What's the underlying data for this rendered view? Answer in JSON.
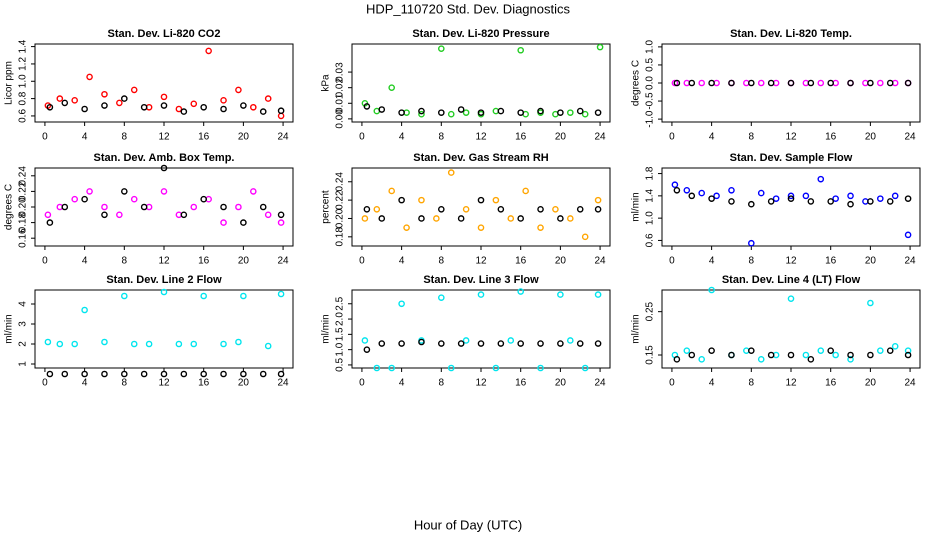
{
  "title": "HDP_110720  Std. Dev. Diagnostics",
  "xlabel": "Hour of Day (UTC)",
  "chart_data": [
    {
      "type": "scatter",
      "title": "Stan. Dev. Li-820 CO2",
      "ylabel": "Licor ppm",
      "xlim": [
        -1,
        25
      ],
      "xticks": [
        0,
        4,
        8,
        12,
        16,
        20,
        24
      ],
      "ylim": [
        0.53,
        1.43
      ],
      "yticks": [
        0.6,
        0.8,
        {
          "value": 1,
          "label": "1.0"
        },
        1.2,
        1.4
      ],
      "grid": false,
      "series": [
        {
          "color": "#ff0000",
          "x": [
            0.3,
            1.5,
            3,
            4.5,
            6,
            7.5,
            9,
            10.5,
            12,
            13.5,
            15,
            16.5,
            18,
            19.5,
            21,
            22.5,
            23.8
          ],
          "values": [
            0.72,
            0.8,
            0.78,
            1.05,
            0.85,
            0.75,
            0.9,
            0.7,
            0.82,
            0.68,
            0.74,
            1.35,
            0.78,
            0.9,
            0.7,
            0.8,
            0.6
          ]
        },
        {
          "color": "#000000",
          "x": [
            0.5,
            2,
            4,
            6,
            8,
            10,
            12,
            14,
            16,
            18,
            20,
            22,
            23.8
          ],
          "values": [
            0.7,
            0.75,
            0.68,
            0.72,
            0.8,
            0.7,
            0.72,
            0.65,
            0.7,
            0.68,
            0.72,
            0.65,
            0.66
          ]
        }
      ]
    },
    {
      "type": "scatter",
      "title": "Stan. Dev. Li-820 Pressure",
      "ylabel": "kPa",
      "xlim": [
        -1,
        25
      ],
      "xticks": [
        0,
        4,
        8,
        12,
        16,
        20,
        24
      ],
      "ylim": [
        -0.002,
        0.048
      ],
      "yticks": [
        {
          "value": 0,
          "label": "0.00"
        },
        0.01,
        0.02,
        0.03
      ],
      "grid": false,
      "series": [
        {
          "color": "#22cc22",
          "x": [
            0.3,
            1.5,
            3,
            4.5,
            6,
            8,
            9,
            10.5,
            12,
            13.5,
            16,
            16.5,
            18,
            19.5,
            21,
            22.5,
            24
          ],
          "values": [
            0.01,
            0.005,
            0.02,
            0.004,
            0.003,
            0.045,
            0.003,
            0.004,
            0.003,
            0.005,
            0.044,
            0.003,
            0.004,
            0.003,
            0.004,
            0.003,
            0.046
          ]
        },
        {
          "color": "#000000",
          "x": [
            0.5,
            2,
            4,
            6,
            8,
            10,
            12,
            14,
            16,
            18,
            20,
            22,
            23.8
          ],
          "values": [
            0.008,
            0.006,
            0.004,
            0.005,
            0.004,
            0.006,
            0.004,
            0.005,
            0.004,
            0.005,
            0.004,
            0.005,
            0.004
          ]
        }
      ]
    },
    {
      "type": "scatter",
      "title": "Stan. Dev. Li-820 Temp.",
      "ylabel": "degrees C",
      "xlim": [
        -1,
        25
      ],
      "xticks": [
        0,
        4,
        8,
        12,
        16,
        20,
        24
      ],
      "ylim": [
        -1.08,
        1.08
      ],
      "yticks": [
        {
          "value": -1,
          "label": "-1.0"
        },
        -0.5,
        {
          "value": 0,
          "label": "0.0"
        },
        0.5,
        {
          "value": 1,
          "label": "1.0"
        }
      ],
      "grid": false,
      "series": [
        {
          "color": "#ff00ff",
          "x": [
            0.3,
            1.5,
            3,
            4.5,
            6,
            7.5,
            9,
            10.5,
            12,
            13.5,
            15,
            16.5,
            18,
            19.5,
            21,
            22.5,
            23.8
          ],
          "values": [
            0,
            0,
            0,
            0,
            0,
            0,
            0,
            0,
            0,
            0,
            0,
            0,
            0,
            0,
            0,
            0,
            0
          ]
        },
        {
          "color": "#000000",
          "x": [
            0.5,
            2,
            4,
            6,
            8,
            10,
            12,
            14,
            16,
            18,
            20,
            22,
            23.8
          ],
          "values": [
            0,
            0,
            0,
            0,
            0,
            0,
            0,
            0,
            0,
            0,
            0,
            0,
            0
          ]
        }
      ]
    },
    {
      "type": "scatter",
      "title": "Stan. Dev. Amb. Box Temp.",
      "ylabel": "degrees C",
      "xlim": [
        -1,
        25
      ],
      "xticks": [
        0,
        4,
        8,
        12,
        16,
        20,
        24
      ],
      "ylim": [
        0.15,
        0.25
      ],
      "yticks": [
        0.16,
        0.18,
        {
          "value": 0.2,
          "label": "0.20"
        },
        0.22,
        0.24
      ],
      "grid": false,
      "series": [
        {
          "color": "#ff00ff",
          "x": [
            0.3,
            1.5,
            3,
            4.5,
            6,
            7.5,
            9,
            10.5,
            12,
            13.5,
            15,
            16.5,
            18,
            19.5,
            21,
            22.5,
            23.8
          ],
          "values": [
            0.19,
            0.2,
            0.21,
            0.22,
            0.2,
            0.19,
            0.21,
            0.2,
            0.22,
            0.19,
            0.2,
            0.21,
            0.18,
            0.2,
            0.22,
            0.19,
            0.18
          ]
        },
        {
          "color": "#000000",
          "x": [
            0.5,
            2,
            4,
            6,
            8,
            10,
            12,
            14,
            16,
            18,
            20,
            22,
            23.8
          ],
          "values": [
            0.18,
            0.2,
            0.21,
            0.19,
            0.22,
            0.2,
            0.25,
            0.19,
            0.21,
            0.2,
            0.18,
            0.2,
            0.19
          ]
        }
      ]
    },
    {
      "type": "scatter",
      "title": "Stan. Dev. Gas Stream RH",
      "ylabel": "percent",
      "xlim": [
        -1,
        25
      ],
      "xticks": [
        0,
        4,
        8,
        12,
        16,
        20,
        24
      ],
      "ylim": [
        0.17,
        0.255
      ],
      "yticks": [
        0.18,
        {
          "value": 0.2,
          "label": "0.20"
        },
        0.22,
        0.24
      ],
      "grid": false,
      "series": [
        {
          "color": "#ffa500",
          "x": [
            0.3,
            1.5,
            3,
            4.5,
            6,
            7.5,
            9,
            10.5,
            12,
            13.5,
            15,
            16.5,
            18,
            19.5,
            21,
            22.5,
            23.8
          ],
          "values": [
            0.2,
            0.21,
            0.23,
            0.19,
            0.22,
            0.2,
            0.25,
            0.21,
            0.19,
            0.22,
            0.2,
            0.23,
            0.19,
            0.21,
            0.2,
            0.18,
            0.22
          ]
        },
        {
          "color": "#000000",
          "x": [
            0.5,
            2,
            4,
            6,
            8,
            10,
            12,
            14,
            16,
            18,
            20,
            22,
            23.8
          ],
          "values": [
            0.21,
            0.2,
            0.22,
            0.2,
            0.21,
            0.2,
            0.22,
            0.21,
            0.2,
            0.21,
            0.2,
            0.21,
            0.21
          ]
        }
      ]
    },
    {
      "type": "scatter",
      "title": "Stan. Dev. Sample Flow",
      "ylabel": "ml/min",
      "xlim": [
        -1,
        25
      ],
      "xticks": [
        0,
        4,
        8,
        12,
        16,
        20,
        24
      ],
      "ylim": [
        0.5,
        1.9
      ],
      "yticks": [
        0.6,
        {
          "value": 1,
          "label": "1.0"
        },
        1.4,
        1.8
      ],
      "grid": false,
      "series": [
        {
          "color": "#0000ff",
          "x": [
            0.3,
            1.5,
            3,
            4.5,
            6,
            8,
            9,
            10.5,
            12,
            13.5,
            15,
            16.5,
            18,
            19.5,
            21,
            22.5,
            23.8
          ],
          "values": [
            1.6,
            1.5,
            1.45,
            1.4,
            1.5,
            0.55,
            1.45,
            1.35,
            1.4,
            1.4,
            1.7,
            1.35,
            1.4,
            1.3,
            1.35,
            1.4,
            0.7
          ]
        },
        {
          "color": "#000000",
          "x": [
            0.5,
            2,
            4,
            6,
            8,
            10,
            12,
            14,
            16,
            18,
            20,
            22,
            23.8
          ],
          "values": [
            1.5,
            1.4,
            1.35,
            1.3,
            1.25,
            1.3,
            1.35,
            1.3,
            1.3,
            1.25,
            1.3,
            1.3,
            1.35
          ]
        }
      ]
    },
    {
      "type": "scatter",
      "title": "Stan. Dev. Line 2 Flow",
      "ylabel": "ml/min",
      "xlim": [
        -1,
        25
      ],
      "xticks": [
        0,
        4,
        8,
        12,
        16,
        20,
        24
      ],
      "ylim": [
        0.8,
        4.7
      ],
      "yticks": [
        1,
        2,
        3,
        4
      ],
      "grid": false,
      "series": [
        {
          "color": "#00e5ee",
          "x": [
            0.3,
            1.5,
            3,
            4,
            6,
            8,
            9,
            10.5,
            12,
            13.5,
            15,
            16,
            18,
            19.5,
            20,
            22.5,
            23.8
          ],
          "values": [
            2.1,
            2,
            2,
            3.7,
            2.1,
            4.4,
            2,
            2,
            4.6,
            2,
            2,
            4.4,
            2,
            2.1,
            4.4,
            1.9,
            4.5
          ]
        },
        {
          "color": "#000000",
          "x": [
            0.5,
            2,
            4,
            6,
            8,
            10,
            12,
            14,
            16,
            18,
            20,
            22,
            23.8
          ],
          "values": [
            0.5,
            0.5,
            0.5,
            0.5,
            0.5,
            0.5,
            0.5,
            0.5,
            0.5,
            0.5,
            0.5,
            0.5,
            0.5
          ]
        }
      ]
    },
    {
      "type": "scatter",
      "title": "Stan. Dev. Line 3 Flow",
      "ylabel": "ml/min",
      "xlim": [
        -1,
        25
      ],
      "xticks": [
        0,
        4,
        8,
        12,
        16,
        20,
        24
      ],
      "ylim": [
        0.4,
        2.95
      ],
      "yticks": [
        0.5,
        {
          "value": 1,
          "label": "1.0"
        },
        1.5,
        {
          "value": 2,
          "label": "2.0"
        },
        2.5
      ],
      "grid": false,
      "series": [
        {
          "color": "#00e5ee",
          "x": [
            0.3,
            1.5,
            3,
            4,
            6,
            8,
            9,
            10.5,
            12,
            13.5,
            15,
            16,
            18,
            20,
            21,
            22.5,
            23.8
          ],
          "values": [
            1.3,
            0.4,
            0.4,
            2.5,
            1.3,
            2.7,
            0.4,
            1.3,
            2.8,
            0.4,
            1.3,
            2.9,
            0.4,
            2.8,
            1.3,
            0.4,
            2.8
          ]
        },
        {
          "color": "#000000",
          "x": [
            0.5,
            2,
            4,
            6,
            8,
            10,
            12,
            14,
            16,
            18,
            20,
            22,
            23.8
          ],
          "values": [
            1.0,
            1.2,
            1.2,
            1.25,
            1.2,
            1.2,
            1.2,
            1.2,
            1.2,
            1.2,
            1.2,
            1.2,
            1.2
          ]
        }
      ]
    },
    {
      "type": "scatter",
      "title": "Stan. Dev. Line 4 (LT) Flow",
      "ylabel": "ml/min",
      "xlim": [
        -1,
        25
      ],
      "xticks": [
        0,
        4,
        8,
        12,
        16,
        20,
        24
      ],
      "ylim": [
        0.12,
        0.3
      ],
      "yticks": [
        0.15,
        0.25
      ],
      "grid": false,
      "series": [
        {
          "color": "#00e5ee",
          "x": [
            0.3,
            1.5,
            3,
            4,
            6,
            7.5,
            9,
            10.5,
            12,
            13.5,
            15,
            16.5,
            18,
            20,
            21,
            22.5,
            23.8
          ],
          "values": [
            0.15,
            0.16,
            0.14,
            0.3,
            0.15,
            0.16,
            0.14,
            0.15,
            0.28,
            0.15,
            0.16,
            0.15,
            0.14,
            0.27,
            0.16,
            0.17,
            0.16
          ]
        },
        {
          "color": "#000000",
          "x": [
            0.5,
            2,
            4,
            6,
            8,
            10,
            12,
            14,
            16,
            18,
            20,
            22,
            23.8
          ],
          "values": [
            0.14,
            0.15,
            0.16,
            0.15,
            0.16,
            0.15,
            0.15,
            0.14,
            0.16,
            0.15,
            0.15,
            0.16,
            0.15
          ]
        }
      ]
    }
  ]
}
